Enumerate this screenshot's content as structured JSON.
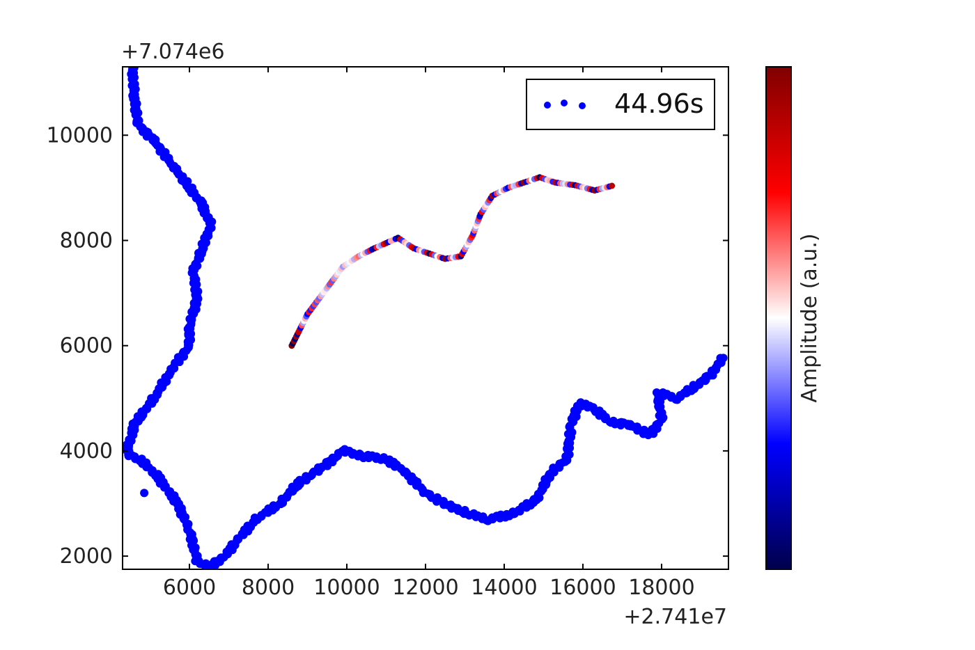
{
  "chart_data": {
    "type": "scatter",
    "x_offset_label": "+2.741e7",
    "y_offset_label": "+7.074e6",
    "xlim": [
      4300,
      19700
    ],
    "ylim": [
      1750,
      11300
    ],
    "x_ticks": [
      6000,
      8000,
      10000,
      12000,
      14000,
      16000,
      18000
    ],
    "y_ticks": [
      2000,
      4000,
      6000,
      8000,
      10000
    ],
    "grid": false,
    "legend": {
      "placement": "top-right",
      "entries": [
        "44.96s"
      ]
    },
    "colorbar": {
      "label": "Amplitude (a.u.)",
      "colormap": "seismic"
    },
    "series": [
      {
        "name": "44.96s",
        "color": "#0000ff",
        "points": [
          [
            4550,
            11300
          ],
          [
            4600,
            10700
          ],
          [
            4700,
            10200
          ],
          [
            5100,
            9900
          ],
          [
            5600,
            9400
          ],
          [
            6000,
            9000
          ],
          [
            6300,
            8700
          ],
          [
            6550,
            8300
          ],
          [
            6300,
            7800
          ],
          [
            6100,
            7400
          ],
          [
            6200,
            6900
          ],
          [
            6000,
            6400
          ],
          [
            6000,
            6000
          ],
          [
            5600,
            5600
          ],
          [
            5100,
            5000
          ],
          [
            4600,
            4500
          ],
          [
            4400,
            3950
          ],
          [
            4800,
            3800
          ],
          [
            5200,
            3500
          ],
          [
            5700,
            3000
          ],
          [
            6000,
            2500
          ],
          [
            6200,
            1900
          ],
          [
            6500,
            1800
          ],
          [
            6900,
            2000
          ],
          [
            7200,
            2300
          ],
          [
            7700,
            2700
          ],
          [
            8300,
            3000
          ],
          [
            8800,
            3400
          ],
          [
            9400,
            3700
          ],
          [
            9900,
            4000
          ],
          [
            10400,
            3900
          ],
          [
            11000,
            3850
          ],
          [
            11500,
            3600
          ],
          [
            12000,
            3200
          ],
          [
            12600,
            2950
          ],
          [
            13100,
            2800
          ],
          [
            13600,
            2700
          ],
          [
            14200,
            2800
          ],
          [
            14800,
            3050
          ],
          [
            15200,
            3600
          ],
          [
            15600,
            3850
          ],
          [
            15700,
            4500
          ],
          [
            15900,
            4900
          ],
          [
            16300,
            4800
          ],
          [
            16700,
            4550
          ],
          [
            17200,
            4500
          ],
          [
            17700,
            4300
          ],
          [
            18000,
            4600
          ],
          [
            17900,
            5100
          ],
          [
            18400,
            5000
          ],
          [
            18800,
            5200
          ],
          [
            19200,
            5400
          ],
          [
            19600,
            5800
          ]
        ]
      },
      {
        "name": "",
        "colored_by": "amplitude",
        "amplitude_range": [
          -1,
          1
        ],
        "points": [
          [
            8600,
            6000,
            1.0
          ],
          [
            8800,
            6300,
            0.7
          ],
          [
            9000,
            6600,
            -0.5
          ],
          [
            9300,
            6900,
            -0.3
          ],
          [
            9600,
            7200,
            0.4
          ],
          [
            9900,
            7500,
            -0.2
          ],
          [
            10300,
            7700,
            0.3
          ],
          [
            10700,
            7850,
            -0.8
          ],
          [
            11000,
            7950,
            0.9
          ],
          [
            11300,
            8050,
            -0.9
          ],
          [
            11700,
            7850,
            0.8
          ],
          [
            12100,
            7750,
            -0.9
          ],
          [
            12500,
            7650,
            0.9
          ],
          [
            12900,
            7700,
            -0.8
          ],
          [
            13200,
            8100,
            0.6
          ],
          [
            13400,
            8500,
            -0.7
          ],
          [
            13700,
            8850,
            0.8
          ],
          [
            14100,
            9000,
            -0.6
          ],
          [
            14500,
            9100,
            0.9
          ],
          [
            14900,
            9200,
            -0.9
          ],
          [
            15300,
            9100,
            0.7
          ],
          [
            15800,
            9050,
            -0.8
          ],
          [
            16300,
            8950,
            0.9
          ],
          [
            16800,
            9050,
            -1.0
          ]
        ]
      }
    ]
  }
}
